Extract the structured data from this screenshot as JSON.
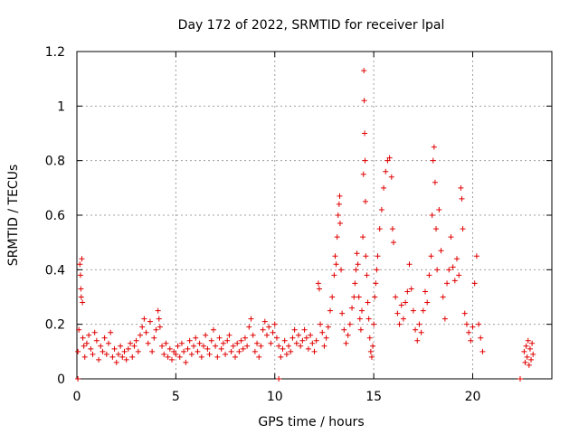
{
  "chart_data": {
    "type": "scatter",
    "title": "Day 172 of 2022, SRMTID for receiver lpal",
    "xlabel": "GPS time / hours",
    "ylabel": "SRMTID / TECUs",
    "xlim": [
      0,
      24
    ],
    "ylim": [
      0,
      1.2
    ],
    "xticks": [
      0,
      5,
      10,
      15,
      20
    ],
    "yticks": [
      0,
      0.2,
      0.4,
      0.6,
      0.8,
      1,
      1.2
    ],
    "xtick_labels": [
      "0",
      "5",
      "10",
      "15",
      "20"
    ],
    "ytick_labels": [
      "0",
      "0.2",
      "0.4",
      "0.6",
      "0.8",
      "1",
      "1.2"
    ],
    "grid": true,
    "marker": "+",
    "color": "#e00000",
    "series": [
      {
        "name": "SRMTID",
        "points": [
          [
            0.05,
            0.1
          ],
          [
            0.1,
            0.18
          ],
          [
            0.15,
            0.42
          ],
          [
            0.18,
            0.38
          ],
          [
            0.2,
            0.33
          ],
          [
            0.22,
            0.3
          ],
          [
            0.25,
            0.44
          ],
          [
            0.28,
            0.28
          ],
          [
            0.3,
            0.15
          ],
          [
            0.35,
            0.12
          ],
          [
            0.4,
            0.08
          ],
          [
            0.5,
            0.13
          ],
          [
            0.6,
            0.16
          ],
          [
            0.7,
            0.11
          ],
          [
            0.8,
            0.09
          ],
          [
            0.9,
            0.17
          ],
          [
            1.0,
            0.14
          ],
          [
            1.1,
            0.07
          ],
          [
            1.2,
            0.12
          ],
          [
            1.3,
            0.1
          ],
          [
            1.4,
            0.15
          ],
          [
            1.5,
            0.09
          ],
          [
            1.6,
            0.13
          ],
          [
            1.7,
            0.17
          ],
          [
            1.8,
            0.08
          ],
          [
            1.9,
            0.11
          ],
          [
            2.0,
            0.06
          ],
          [
            2.1,
            0.09
          ],
          [
            2.2,
            0.12
          ],
          [
            2.3,
            0.08
          ],
          [
            2.4,
            0.1
          ],
          [
            2.5,
            0.07
          ],
          [
            2.6,
            0.11
          ],
          [
            2.7,
            0.13
          ],
          [
            2.8,
            0.08
          ],
          [
            2.9,
            0.12
          ],
          [
            3.0,
            0.14
          ],
          [
            3.1,
            0.1
          ],
          [
            3.2,
            0.16
          ],
          [
            3.3,
            0.19
          ],
          [
            3.4,
            0.22
          ],
          [
            3.5,
            0.17
          ],
          [
            3.6,
            0.13
          ],
          [
            3.7,
            0.21
          ],
          [
            3.8,
            0.1
          ],
          [
            3.9,
            0.15
          ],
          [
            4.0,
            0.18
          ],
          [
            4.1,
            0.25
          ],
          [
            4.15,
            0.22
          ],
          [
            4.2,
            0.19
          ],
          [
            4.3,
            0.12
          ],
          [
            4.4,
            0.09
          ],
          [
            4.5,
            0.13
          ],
          [
            4.6,
            0.08
          ],
          [
            4.7,
            0.11
          ],
          [
            4.8,
            0.07
          ],
          [
            4.9,
            0.1
          ],
          [
            5.0,
            0.09
          ],
          [
            5.1,
            0.12
          ],
          [
            5.2,
            0.08
          ],
          [
            5.3,
            0.13
          ],
          [
            5.4,
            0.1
          ],
          [
            5.5,
            0.06
          ],
          [
            5.6,
            0.11
          ],
          [
            5.7,
            0.14
          ],
          [
            5.8,
            0.09
          ],
          [
            5.9,
            0.12
          ],
          [
            6.0,
            0.15
          ],
          [
            6.1,
            0.1
          ],
          [
            6.2,
            0.13
          ],
          [
            6.3,
            0.08
          ],
          [
            6.4,
            0.12
          ],
          [
            6.5,
            0.16
          ],
          [
            6.6,
            0.11
          ],
          [
            6.7,
            0.09
          ],
          [
            6.8,
            0.14
          ],
          [
            6.9,
            0.18
          ],
          [
            7.0,
            0.12
          ],
          [
            7.1,
            0.08
          ],
          [
            7.2,
            0.15
          ],
          [
            7.3,
            0.11
          ],
          [
            7.4,
            0.13
          ],
          [
            7.5,
            0.09
          ],
          [
            7.6,
            0.14
          ],
          [
            7.7,
            0.16
          ],
          [
            7.8,
            0.1
          ],
          [
            7.9,
            0.12
          ],
          [
            8.0,
            0.08
          ],
          [
            8.1,
            0.13
          ],
          [
            8.2,
            0.1
          ],
          [
            8.3,
            0.14
          ],
          [
            8.4,
            0.11
          ],
          [
            8.5,
            0.15
          ],
          [
            8.6,
            0.12
          ],
          [
            8.7,
            0.19
          ],
          [
            8.8,
            0.22
          ],
          [
            8.9,
            0.16
          ],
          [
            9.0,
            0.1
          ],
          [
            9.1,
            0.13
          ],
          [
            9.2,
            0.08
          ],
          [
            9.3,
            0.12
          ],
          [
            9.4,
            0.18
          ],
          [
            9.5,
            0.21
          ],
          [
            9.6,
            0.16
          ],
          [
            9.7,
            0.19
          ],
          [
            9.8,
            0.13
          ],
          [
            9.9,
            0.17
          ],
          [
            10.0,
            0.2
          ],
          [
            10.1,
            0.15
          ],
          [
            10.2,
            0.12
          ],
          [
            10.3,
            0.08
          ],
          [
            10.4,
            0.11
          ],
          [
            10.5,
            0.14
          ],
          [
            10.6,
            0.09
          ],
          [
            10.7,
            0.12
          ],
          [
            10.8,
            0.1
          ],
          [
            10.9,
            0.15
          ],
          [
            11.0,
            0.18
          ],
          [
            11.1,
            0.13
          ],
          [
            11.2,
            0.16
          ],
          [
            11.3,
            0.12
          ],
          [
            11.4,
            0.14
          ],
          [
            11.5,
            0.18
          ],
          [
            11.6,
            0.15
          ],
          [
            11.7,
            0.11
          ],
          [
            11.8,
            0.16
          ],
          [
            11.9,
            0.13
          ],
          [
            12.0,
            0.1
          ],
          [
            12.1,
            0.14
          ],
          [
            12.2,
            0.35
          ],
          [
            12.25,
            0.33
          ],
          [
            12.3,
            0.2
          ],
          [
            12.4,
            0.17
          ],
          [
            12.5,
            0.12
          ],
          [
            12.6,
            0.15
          ],
          [
            12.7,
            0.19
          ],
          [
            12.8,
            0.25
          ],
          [
            12.9,
            0.3
          ],
          [
            13.0,
            0.38
          ],
          [
            13.05,
            0.45
          ],
          [
            13.1,
            0.42
          ],
          [
            13.15,
            0.52
          ],
          [
            13.2,
            0.6
          ],
          [
            13.25,
            0.64
          ],
          [
            13.28,
            0.67
          ],
          [
            13.3,
            0.57
          ],
          [
            13.35,
            0.4
          ],
          [
            13.4,
            0.24
          ],
          [
            13.5,
            0.18
          ],
          [
            13.6,
            0.13
          ],
          [
            13.7,
            0.16
          ],
          [
            13.8,
            0.2
          ],
          [
            13.9,
            0.26
          ],
          [
            14.0,
            0.3
          ],
          [
            14.05,
            0.35
          ],
          [
            14.1,
            0.4
          ],
          [
            14.15,
            0.46
          ],
          [
            14.2,
            0.42
          ],
          [
            14.25,
            0.3
          ],
          [
            14.3,
            0.22
          ],
          [
            14.35,
            0.18
          ],
          [
            14.4,
            0.25
          ],
          [
            14.45,
            0.52
          ],
          [
            14.48,
            0.75
          ],
          [
            14.5,
            1.13
          ],
          [
            14.52,
            1.02
          ],
          [
            14.54,
            0.9
          ],
          [
            14.56,
            0.8
          ],
          [
            14.58,
            0.65
          ],
          [
            14.6,
            0.45
          ],
          [
            14.65,
            0.38
          ],
          [
            14.7,
            0.28
          ],
          [
            14.75,
            0.22
          ],
          [
            14.8,
            0.15
          ],
          [
            14.85,
            0.1
          ],
          [
            14.9,
            0.08
          ],
          [
            14.95,
            0.12
          ],
          [
            15.0,
            0.2
          ],
          [
            15.05,
            0.3
          ],
          [
            15.1,
            0.35
          ],
          [
            15.15,
            0.4
          ],
          [
            15.2,
            0.45
          ],
          [
            15.3,
            0.55
          ],
          [
            15.4,
            0.62
          ],
          [
            15.5,
            0.7
          ],
          [
            15.6,
            0.76
          ],
          [
            15.7,
            0.8
          ],
          [
            15.8,
            0.81
          ],
          [
            15.9,
            0.74
          ],
          [
            15.95,
            0.55
          ],
          [
            16.0,
            0.5
          ],
          [
            16.1,
            0.3
          ],
          [
            16.2,
            0.24
          ],
          [
            16.3,
            0.2
          ],
          [
            16.4,
            0.27
          ],
          [
            16.5,
            0.22
          ],
          [
            16.6,
            0.28
          ],
          [
            16.7,
            0.32
          ],
          [
            16.8,
            0.42
          ],
          [
            16.9,
            0.33
          ],
          [
            17.0,
            0.25
          ],
          [
            17.1,
            0.18
          ],
          [
            17.2,
            0.14
          ],
          [
            17.3,
            0.2
          ],
          [
            17.4,
            0.17
          ],
          [
            17.5,
            0.25
          ],
          [
            17.6,
            0.32
          ],
          [
            17.7,
            0.28
          ],
          [
            17.8,
            0.38
          ],
          [
            17.9,
            0.45
          ],
          [
            17.95,
            0.6
          ],
          [
            18.0,
            0.8
          ],
          [
            18.05,
            0.85
          ],
          [
            18.1,
            0.72
          ],
          [
            18.15,
            0.55
          ],
          [
            18.2,
            0.4
          ],
          [
            18.3,
            0.62
          ],
          [
            18.4,
            0.47
          ],
          [
            18.5,
            0.3
          ],
          [
            18.6,
            0.22
          ],
          [
            18.7,
            0.35
          ],
          [
            18.8,
            0.4
          ],
          [
            18.9,
            0.52
          ],
          [
            19.0,
            0.41
          ],
          [
            19.1,
            0.36
          ],
          [
            19.2,
            0.44
          ],
          [
            19.3,
            0.38
          ],
          [
            19.4,
            0.7
          ],
          [
            19.45,
            0.66
          ],
          [
            19.5,
            0.55
          ],
          [
            19.6,
            0.24
          ],
          [
            19.7,
            0.2
          ],
          [
            19.8,
            0.17
          ],
          [
            19.9,
            0.14
          ],
          [
            20.0,
            0.19
          ],
          [
            20.1,
            0.35
          ],
          [
            20.2,
            0.45
          ],
          [
            20.3,
            0.2
          ],
          [
            20.4,
            0.15
          ],
          [
            20.5,
            0.1
          ],
          [
            22.6,
            0.1
          ],
          [
            22.65,
            0.06
          ],
          [
            22.7,
            0.12
          ],
          [
            22.75,
            0.08
          ],
          [
            22.8,
            0.14
          ],
          [
            22.85,
            0.05
          ],
          [
            22.9,
            0.11
          ],
          [
            22.95,
            0.07
          ],
          [
            23.0,
            0.13
          ],
          [
            23.05,
            0.09
          ],
          [
            0.05,
            0.0
          ],
          [
            10.2,
            0.0
          ],
          [
            22.4,
            0.0
          ]
        ]
      }
    ]
  }
}
